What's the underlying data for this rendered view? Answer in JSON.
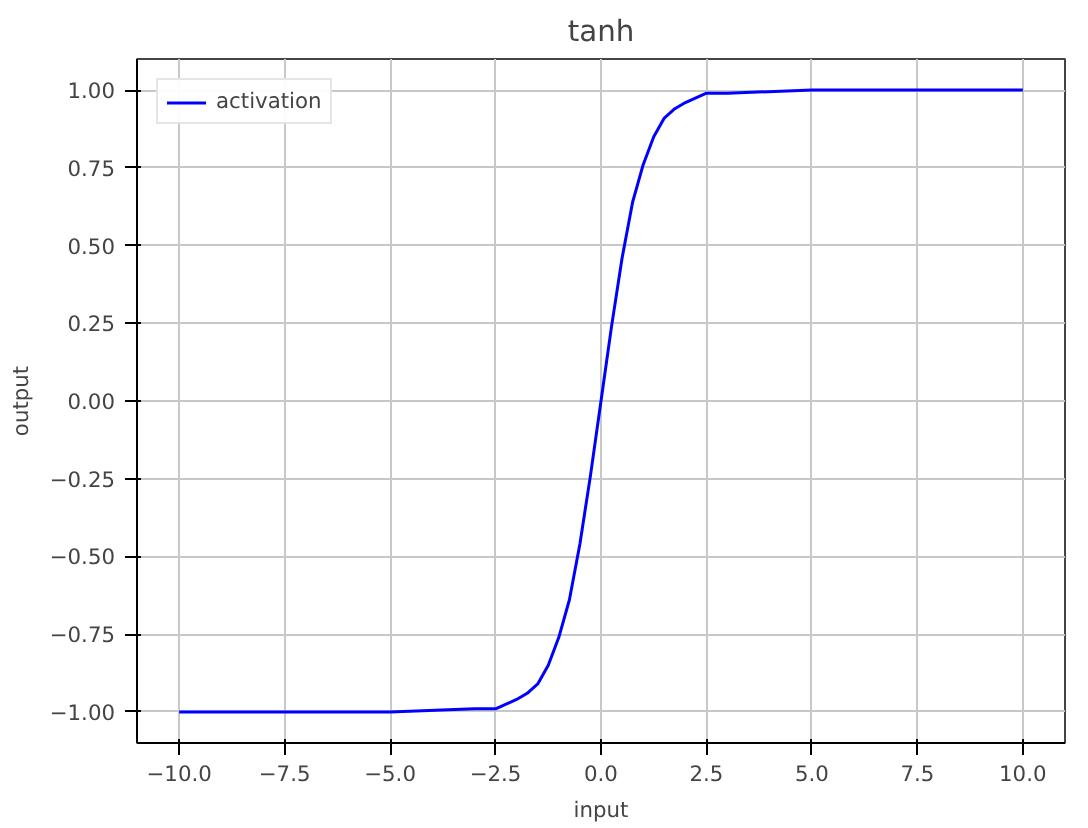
{
  "chart_data": {
    "type": "line",
    "title": "tanh",
    "xlabel": "input",
    "ylabel": "output",
    "x": [
      -10,
      -5,
      -3,
      -2.5,
      -2,
      -1.75,
      -1.5,
      -1.25,
      -1,
      -0.75,
      -0.5,
      -0.25,
      0,
      0.25,
      0.5,
      0.75,
      1,
      1.25,
      1.5,
      1.75,
      2,
      2.5,
      3,
      5,
      10
    ],
    "series": [
      {
        "name": "activation",
        "color": "#0000ff",
        "values": [
          -1,
          -1,
          -0.99,
          -0.99,
          -0.96,
          -0.94,
          -0.91,
          -0.85,
          -0.76,
          -0.64,
          -0.46,
          -0.24,
          0,
          0.24,
          0.46,
          0.64,
          0.76,
          0.85,
          0.91,
          0.94,
          0.96,
          0.99,
          0.99,
          1,
          1
        ]
      }
    ],
    "xlim": [
      -11,
      11
    ],
    "ylim": [
      -1.1,
      1.1
    ],
    "xticks": [
      {
        "value": -10,
        "label": "−10.0"
      },
      {
        "value": -7.5,
        "label": "−7.5"
      },
      {
        "value": -5,
        "label": "−5.0"
      },
      {
        "value": -2.5,
        "label": "−2.5"
      },
      {
        "value": 0,
        "label": "0.0"
      },
      {
        "value": 2.5,
        "label": "2.5"
      },
      {
        "value": 5,
        "label": "5.0"
      },
      {
        "value": 7.5,
        "label": "7.5"
      },
      {
        "value": 10,
        "label": "10.0"
      }
    ],
    "yticks": [
      {
        "value": -1,
        "label": "−1.00"
      },
      {
        "value": -0.75,
        "label": "−0.75"
      },
      {
        "value": -0.5,
        "label": "−0.50"
      },
      {
        "value": -0.25,
        "label": "−0.25"
      },
      {
        "value": 0,
        "label": "0.00"
      },
      {
        "value": 0.25,
        "label": "0.25"
      },
      {
        "value": 0.5,
        "label": "0.50"
      },
      {
        "value": 0.75,
        "label": "0.75"
      },
      {
        "value": 1,
        "label": "1.00"
      }
    ],
    "grid": true,
    "legend": "top left",
    "line_style": "solid",
    "marker": "none"
  }
}
